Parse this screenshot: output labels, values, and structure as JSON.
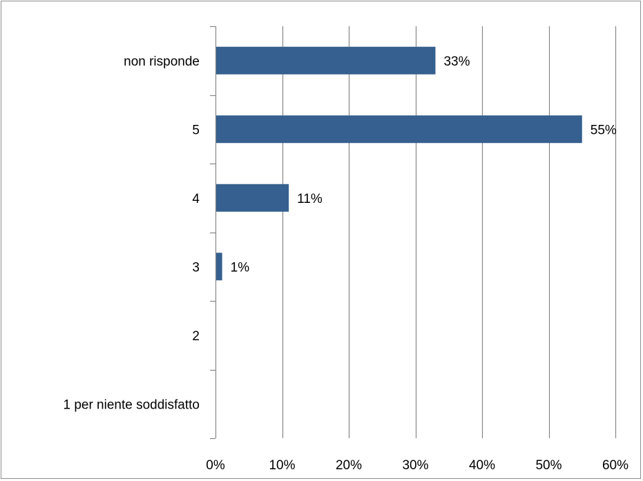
{
  "chart_data": {
    "type": "bar",
    "orientation": "horizontal",
    "categories": [
      "non risponde",
      "5",
      "4",
      "3",
      "2",
      "1 per niente soddisfatto"
    ],
    "values": [
      33,
      55,
      11,
      1,
      0,
      0
    ],
    "data_labels": [
      "33%",
      "55%",
      "11%",
      "1%",
      "",
      ""
    ],
    "xlim": [
      0,
      60
    ],
    "x_ticks": [
      0,
      10,
      20,
      30,
      40,
      50,
      60
    ],
    "x_tick_labels": [
      "0%",
      "10%",
      "20%",
      "30%",
      "40%",
      "50%",
      "60%"
    ],
    "title": "",
    "xlabel": "",
    "ylabel": "",
    "grid": "vertical",
    "legend": "none",
    "colors": {
      "bar": "#35608f",
      "grid": "#868686",
      "text": "#000000",
      "frame": "#8c8c8c"
    }
  }
}
